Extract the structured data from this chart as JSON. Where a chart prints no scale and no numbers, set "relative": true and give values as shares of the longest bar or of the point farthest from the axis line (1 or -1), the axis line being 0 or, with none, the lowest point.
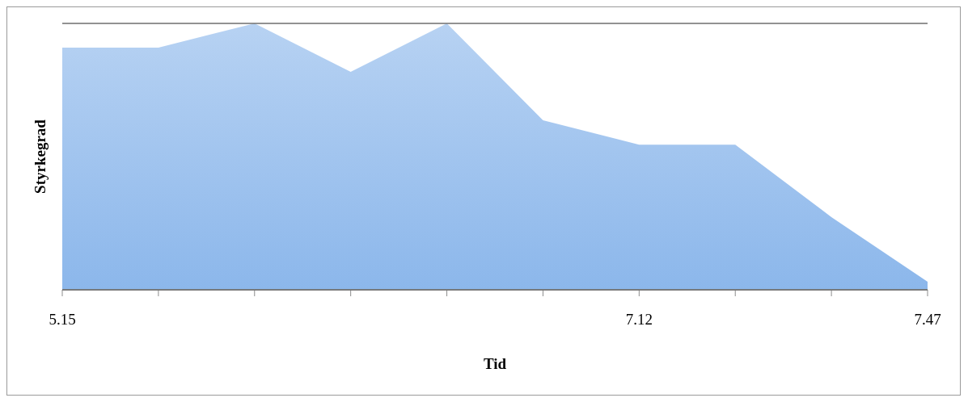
{
  "chart_data": {
    "type": "area",
    "xlabel": "Tid",
    "ylabel": "Styrkegrad",
    "relative": true,
    "grid": "y",
    "categories": [
      "5.15",
      null,
      null,
      null,
      null,
      null,
      "7.12",
      null,
      null,
      "7.47"
    ],
    "color": "#6fa5e6",
    "values": [
      0.909,
      0.909,
      1,
      0.818,
      1,
      0.636,
      0.545,
      0.545,
      0.273,
      0.03
    ]
  }
}
